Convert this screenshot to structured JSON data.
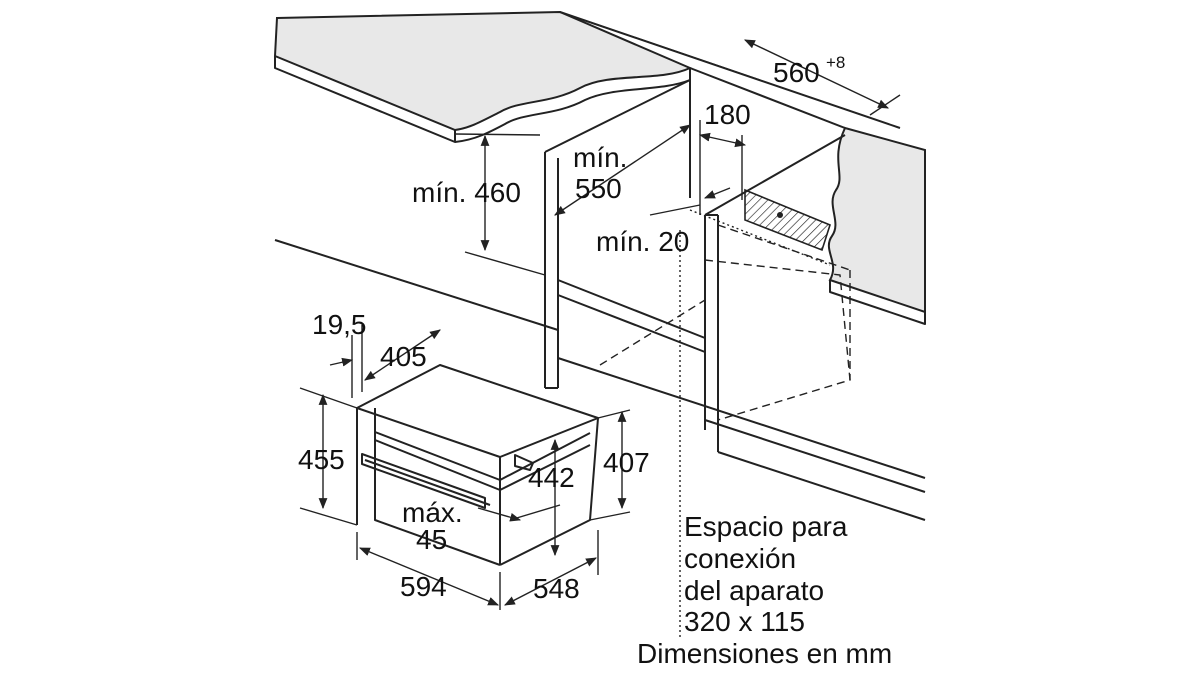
{
  "diagram": {
    "dimensions": {
      "niche_width": "560",
      "niche_width_tolerance": "+8",
      "socket_offset": "180",
      "min_depth_label": "mín.",
      "min_depth_value": "550",
      "min_height_label": "mín. 460",
      "min_gap_label": "mín. 20",
      "front_offset": "19,5",
      "side_depth": "405",
      "total_height": "455",
      "body_height": "442",
      "rear_height": "407",
      "protrusion_label": "máx.",
      "protrusion_value": "45",
      "total_width": "594",
      "body_depth": "548"
    },
    "note_lines": [
      "Espacio para",
      "conexión",
      "del aparato",
      "320 x 115",
      "Dimensiones en mm"
    ]
  }
}
